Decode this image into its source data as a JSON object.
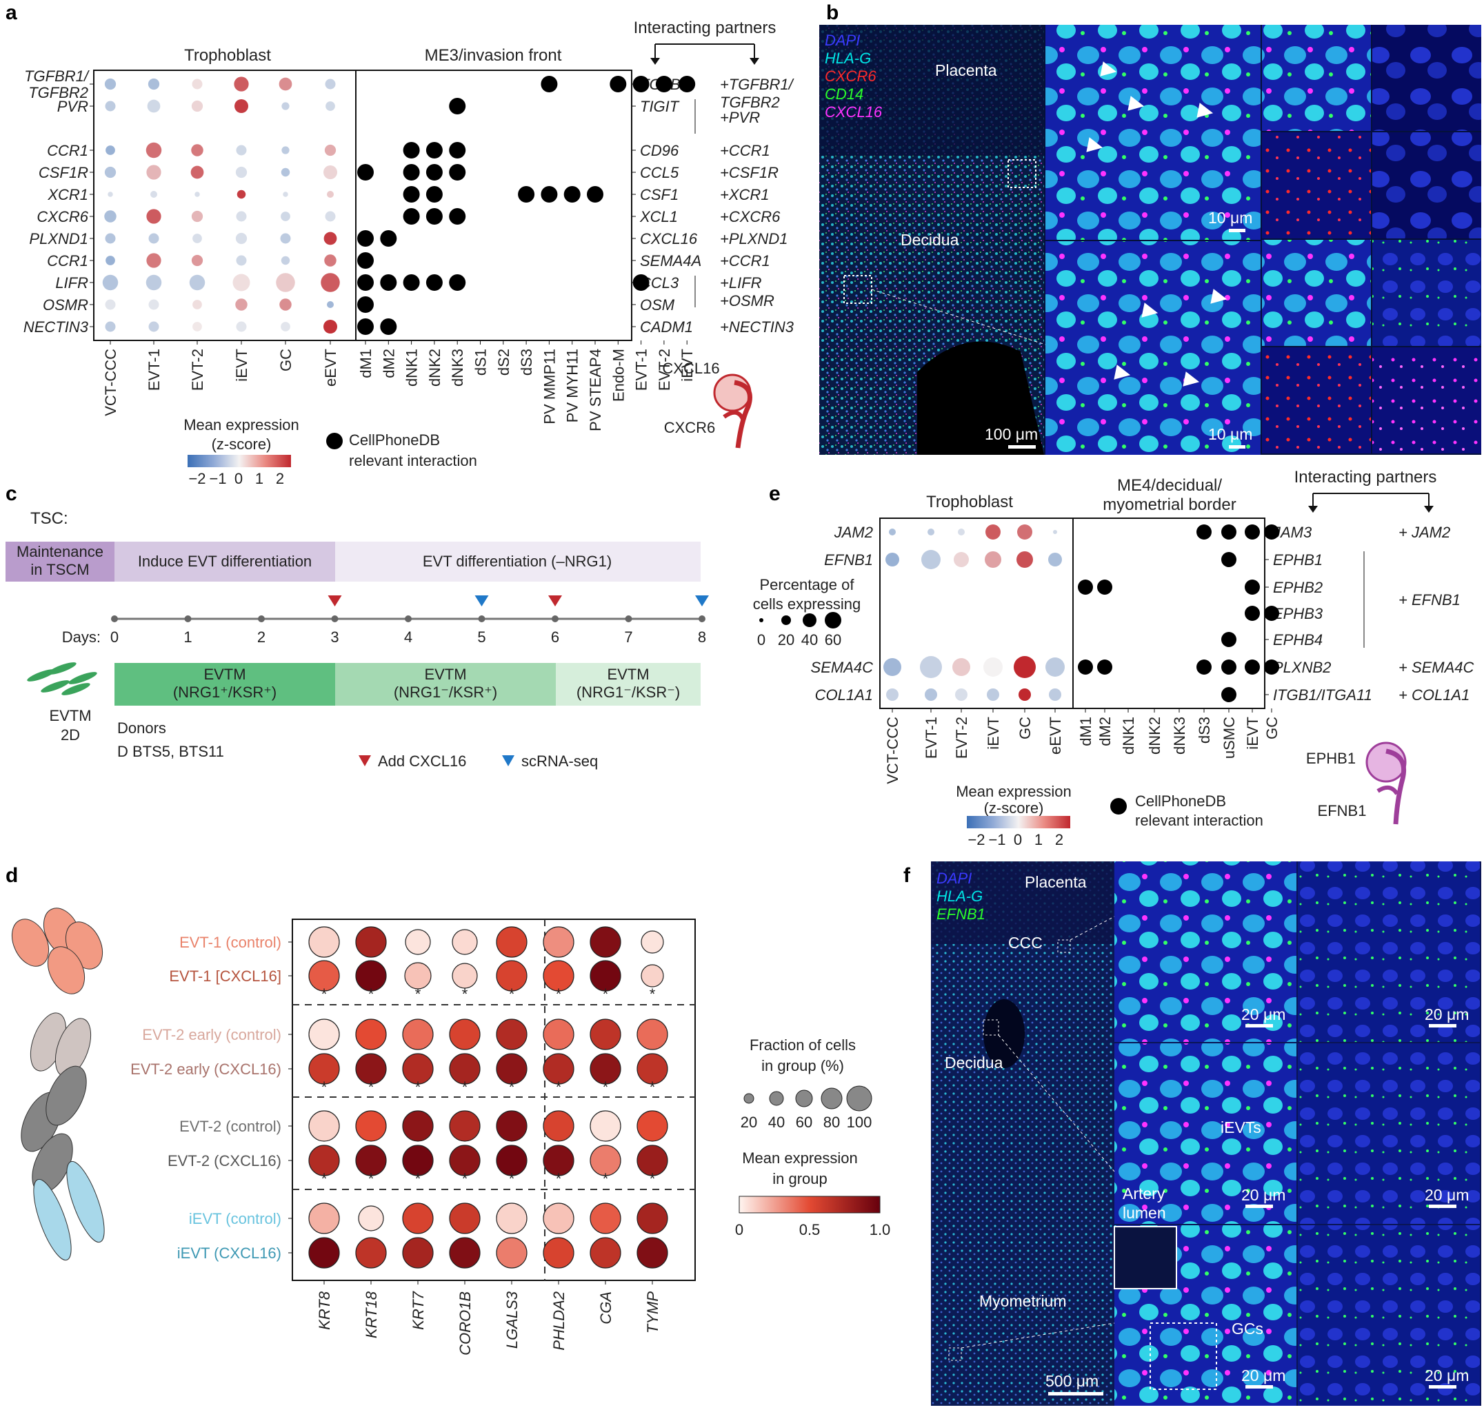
{
  "panel_labels": [
    "a",
    "b",
    "c",
    "d",
    "e",
    "f"
  ],
  "panel_a": {
    "group_headers": [
      "Trophoblast",
      "ME3/invasion front",
      "Interacting partners"
    ],
    "left_genes": [
      "TGFBR1/\nTGFBR2",
      "PVR",
      "CCR1",
      "CSF1R",
      "XCR1",
      "CXCR6",
      "PLXND1",
      "CCR1",
      "LIFR",
      "OSMR",
      "NECTIN3"
    ],
    "right_genes": [
      "TGFB2",
      "TIGIT",
      "CD96",
      "CCL5",
      "CSF1",
      "XCL1",
      "CXCL16",
      "SEMA4A",
      "CCL3",
      "OSM",
      "CADM1"
    ],
    "partners": [
      "+TGFBR1/\nTGFBR2",
      "+PVR",
      "+CCR1",
      "+CSF1R",
      "+XCR1",
      "+CXCR6",
      "+PLXND1",
      "+CCR1",
      "+LIFR\n+OSMR",
      "+NECTIN3"
    ],
    "troph_cols": [
      "VCT-CCC",
      "EVT-1",
      "EVT-2",
      "iEVT",
      "GC",
      "eEVT"
    ],
    "me_cols": [
      "dM1",
      "dM2",
      "dNK1",
      "dNK2",
      "dNK3",
      "dS1",
      "dS2",
      "dS3",
      "PV MMP11",
      "PV MYH11",
      "PV STEAP4",
      "Endo-M",
      "EVT-1",
      "EVT-2",
      "iEVT"
    ],
    "legend_title": [
      "Mean expression",
      "(z-score)"
    ],
    "legend_ticks": [
      "−2",
      "−1",
      "0",
      "1",
      "2"
    ],
    "interaction_legend": [
      "CellPhoneDB",
      "relevant interaction"
    ],
    "ligand_label": "CXCL16",
    "receptor_label": "CXCR6",
    "colors": {
      "red": "#c0282e",
      "blue": "#3b6fb6"
    }
  },
  "panel_b": {
    "channels": [
      {
        "name": "DAPI",
        "color": "#3a3aff"
      },
      {
        "name": "HLA-G",
        "color": "#00e6e6"
      },
      {
        "name": "CXCR6",
        "color": "#ff2a2a"
      },
      {
        "name": "CD14",
        "color": "#2aff2a"
      },
      {
        "name": "CXCL16",
        "color": "#ff33ff"
      }
    ],
    "region_labels": [
      "Placenta",
      "Decidua"
    ],
    "scale_bars": [
      "100 μm",
      "10 μm",
      "10 μm"
    ]
  },
  "panel_c": {
    "tsc_label": "TSC:",
    "phases": [
      "Maintenance\nin TSCM",
      "Induce EVT differentiation",
      "EVT differentiation (–NRG1)"
    ],
    "days_label": "Days:",
    "days": [
      "0",
      "1",
      "2",
      "3",
      "4",
      "5",
      "6",
      "7",
      "8"
    ],
    "media": [
      "EVTM\n(NRG1⁺/KSR⁺)",
      "EVTM\n(NRG1⁻/KSR⁺)",
      "EVTM\n(NRG1⁻/KSR⁻)"
    ],
    "evtm_label": "EVTM\n2D",
    "donors_label": "Donors",
    "donors": "D  BTS5, BTS11",
    "legend": [
      "Add CXCL16",
      "scRNA-seq"
    ]
  },
  "panel_d": {
    "rows": [
      "EVT-1 (control)",
      "EVT-1 [CXCL16]",
      "EVT-2 early (control)",
      "EVT-2 early (CXCL16)",
      "EVT-2 (control)",
      "EVT-2 (CXCL16)",
      "iEVT (control)",
      "iEVT (CXCL16)"
    ],
    "row_colors": [
      "#e9826a",
      "#b5533d",
      "#d8a79c",
      "#a8726b",
      "#6e6e6e",
      "#555555",
      "#68c3de",
      "#3d98b3"
    ],
    "genes": [
      "KRT8",
      "KRT18",
      "KRT7",
      "CORO1B",
      "LGALS3",
      "PHLDA2",
      "CGA",
      "TYMP"
    ],
    "star": "*",
    "size_legend_title": [
      "Fraction of cells",
      "in group (%)"
    ],
    "size_legend_ticks": [
      "20",
      "40",
      "60",
      "80",
      "100"
    ],
    "color_legend_title": [
      "Mean expression",
      "in group"
    ],
    "color_legend_ticks": [
      "0",
      "0.5",
      "1.0"
    ]
  },
  "panel_e": {
    "group_headers": [
      "Trophoblast",
      "ME4/decidual/\nmyometrial border",
      "Interacting partners"
    ],
    "left_genes": [
      "JAM2",
      "EFNB1",
      "SEMA4C",
      "COL1A1"
    ],
    "right_genes": [
      "JAM3",
      "EPHB1",
      "EPHB2",
      "EPHB3",
      "EPHB4",
      "PLXNB2",
      "ITGB1/ITGA11"
    ],
    "partners": [
      "+ JAM2",
      "+ EFNB1",
      "+ SEMA4C",
      "+ COL1A1"
    ],
    "troph_cols": [
      "VCT-CCC",
      "EVT-1",
      "EVT-2",
      "iEVT",
      "GC",
      "eEVT"
    ],
    "me_cols": [
      "dM1",
      "dM2",
      "dNK1",
      "dNK2",
      "dNK3",
      "dS3",
      "uSMC",
      "iEVT",
      "GC"
    ],
    "pct_title": [
      "Percentage of",
      "cells expressing"
    ],
    "pct_ticks": [
      "0",
      "20",
      "40",
      "60"
    ],
    "legend_title": [
      "Mean expression",
      "(z-score)"
    ],
    "legend_ticks": [
      "−2",
      "−1",
      "0",
      "1",
      "2"
    ],
    "interaction_legend": [
      "CellPhoneDB",
      "relevant interaction"
    ],
    "ligand_label": "EPHB1",
    "receptor_label": "EFNB1"
  },
  "panel_f": {
    "channels": [
      {
        "name": "DAPI",
        "color": "#3a3aff"
      },
      {
        "name": "HLA-G",
        "color": "#00e6e6"
      },
      {
        "name": "EFNB1",
        "color": "#2aff2a"
      }
    ],
    "region_labels": [
      "Placenta",
      "CCC",
      "Decidua",
      "Myometrium"
    ],
    "inset_labels": [
      "iEVTs",
      "Artery\nlumen",
      "GCs"
    ],
    "scale_bars": [
      "500 μm",
      "20 μm",
      "20 μm",
      "20 μm",
      "20 μm",
      "20 μm",
      "20 μm"
    ]
  }
}
